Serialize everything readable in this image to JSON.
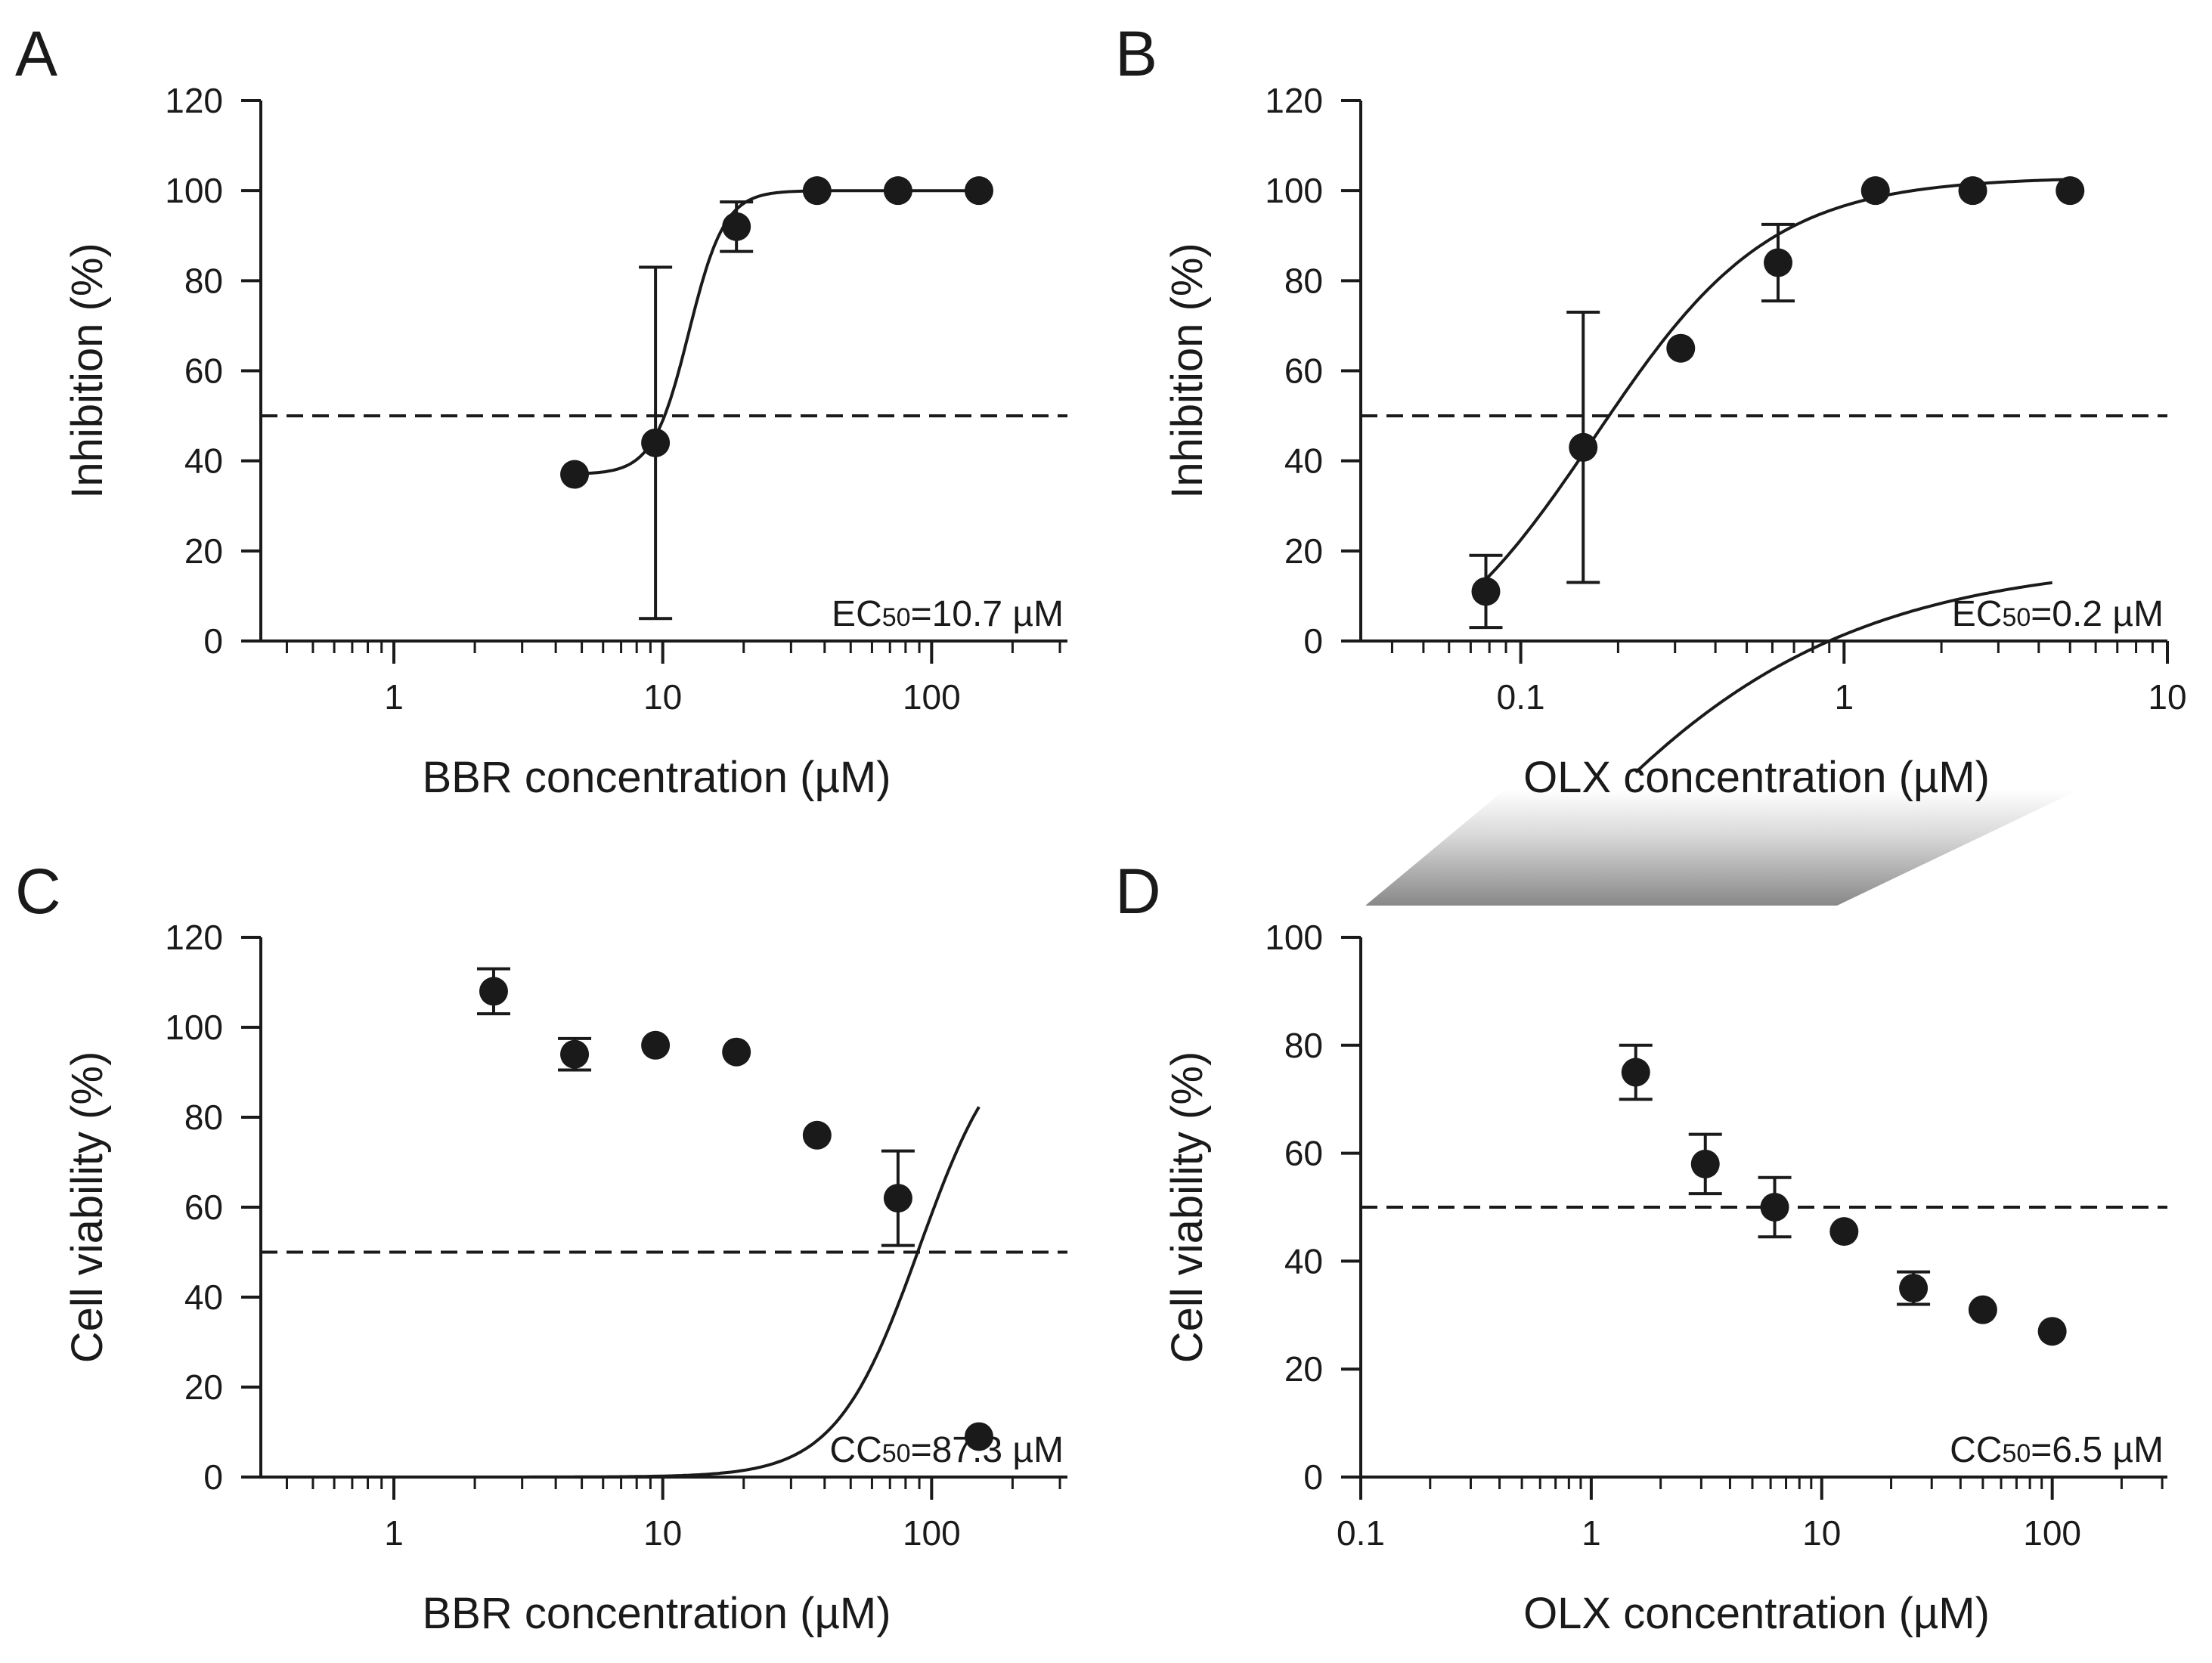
{
  "figure": {
    "connector_gradient": [
      "#888888",
      "#d8d8d8",
      "#ffffff"
    ]
  },
  "chart_data": [
    {
      "type": "scatter",
      "panel": "A",
      "xscale": "log",
      "xlim": [
        0.32,
        320
      ],
      "ylim": [
        0,
        120
      ],
      "xticks": [
        1,
        10,
        100
      ],
      "xtick_labels": [
        "1",
        "10",
        "100"
      ],
      "yticks": [
        0,
        20,
        40,
        60,
        80,
        100,
        120
      ],
      "ytick_labels": [
        "0",
        "20",
        "40",
        "60",
        "80",
        "100",
        "120"
      ],
      "xlabel": "BBR concentration (µM)",
      "ylabel": "Inhibition (%)",
      "reference_line": 50,
      "annotation": {
        "label": "EC",
        "sub": "50",
        "value": "=10.7 µM"
      },
      "points": [
        {
          "x": 4.7,
          "y": 37,
          "err": 0
        },
        {
          "x": 9.4,
          "y": 44,
          "err": 39
        },
        {
          "x": 18.8,
          "y": 92,
          "err": 5.5
        },
        {
          "x": 37.5,
          "y": 100,
          "err": 0
        },
        {
          "x": 75,
          "y": 100,
          "err": 0
        },
        {
          "x": 150,
          "y": 100,
          "err": 0
        }
      ],
      "curve": {
        "bottom": 37,
        "top": 100,
        "ec50": 12.5,
        "hill": 6.5,
        "from": 4.7,
        "to": 150
      }
    },
    {
      "type": "scatter",
      "panel": "B",
      "xscale": "log",
      "xlim": [
        0.032,
        10
      ],
      "ylim": [
        0,
        120
      ],
      "xticks": [
        0.1,
        1,
        10
      ],
      "xtick_labels": [
        "0.1",
        "1",
        "10"
      ],
      "yticks": [
        0,
        20,
        40,
        60,
        80,
        100,
        120
      ],
      "ytick_labels": [
        "0",
        "20",
        "40",
        "60",
        "80",
        "100",
        "120"
      ],
      "xlabel": "OLX concentration (µM)",
      "ylabel": "Inhibition (%)",
      "reference_line": 50,
      "annotation": {
        "label": "EC",
        "sub": "50",
        "value": "=0.2 µM"
      },
      "points": [
        {
          "x": 0.078,
          "y": 11,
          "err": 8
        },
        {
          "x": 0.156,
          "y": 43,
          "err": 30
        },
        {
          "x": 0.3125,
          "y": 65,
          "err": 0
        },
        {
          "x": 0.625,
          "y": 84,
          "err": 8.5
        },
        {
          "x": 1.25,
          "y": 100,
          "err": 0
        },
        {
          "x": 2.5,
          "y": 100,
          "err": 0
        },
        {
          "x": 5,
          "y": 100,
          "err": 0
        }
      ],
      "curve": {
        "bottom": -12,
        "top": 103,
        "ec50": 0.17,
        "hill": 1.6,
        "from": 0.078,
        "to": 5
      }
    },
    {
      "type": "scatter",
      "panel": "C",
      "xscale": "log",
      "xlim": [
        0.32,
        320
      ],
      "ylim": [
        0,
        120
      ],
      "xticks": [
        1,
        10,
        100
      ],
      "xtick_labels": [
        "1",
        "10",
        "100"
      ],
      "yticks": [
        0,
        20,
        40,
        60,
        80,
        100,
        120
      ],
      "ytick_labels": [
        "0",
        "20",
        "40",
        "60",
        "80",
        "100",
        "120"
      ],
      "xlabel": "BBR concentration (µM)",
      "ylabel": "Cell viability (%)",
      "reference_line": 50,
      "annotation": {
        "label": "CC",
        "sub": "50",
        "value": "=87.3 µM"
      },
      "points": [
        {
          "x": 2.35,
          "y": 108,
          "err": 5
        },
        {
          "x": 4.7,
          "y": 94,
          "err": 3.5
        },
        {
          "x": 9.4,
          "y": 96,
          "err": 0
        },
        {
          "x": 18.8,
          "y": 94.5,
          "err": 0
        },
        {
          "x": 37.5,
          "y": 76,
          "err": 0
        },
        {
          "x": 75,
          "y": 62,
          "err": 10.5
        },
        {
          "x": 150,
          "y": 9,
          "err": 0
        }
      ],
      "curve": {
        "bottom": 0,
        "top": 102,
        "ec50": 90,
        "hill": 2.8,
        "from": 2.35,
        "to": 150
      }
    },
    {
      "type": "scatter",
      "panel": "D",
      "xscale": "log",
      "xlim": [
        0.1,
        316
      ],
      "ylim": [
        0,
        100
      ],
      "xticks": [
        0.1,
        1,
        10,
        100
      ],
      "xtick_labels": [
        "0.1",
        "1",
        "10",
        "100"
      ],
      "yticks": [
        0,
        20,
        40,
        60,
        80,
        100
      ],
      "ytick_labels": [
        "0",
        "20",
        "40",
        "60",
        "80",
        "100"
      ],
      "xlabel": "OLX concentration (µM)",
      "ylabel": "Cell viability (%)",
      "reference_line": 50,
      "annotation": {
        "label": "CC",
        "sub": "50",
        "value": "=6.5 µM"
      },
      "points": [
        {
          "x": 1.56,
          "y": 75,
          "err": 5
        },
        {
          "x": 3.125,
          "y": 58,
          "err": 5.5
        },
        {
          "x": 6.25,
          "y": 50,
          "err": 5.5
        },
        {
          "x": 12.5,
          "y": 45.5,
          "err": 0
        },
        {
          "x": 25,
          "y": 35,
          "err": 3
        },
        {
          "x": 50,
          "y": 31,
          "err": 0
        },
        {
          "x": 100,
          "y": 27,
          "err": 0
        }
      ],
      "curve": {
        "bottom": 20,
        "top": 170,
        "ec50": 0.28,
        "hill": 0.6,
        "from": 1.56,
        "to": 100
      }
    }
  ]
}
